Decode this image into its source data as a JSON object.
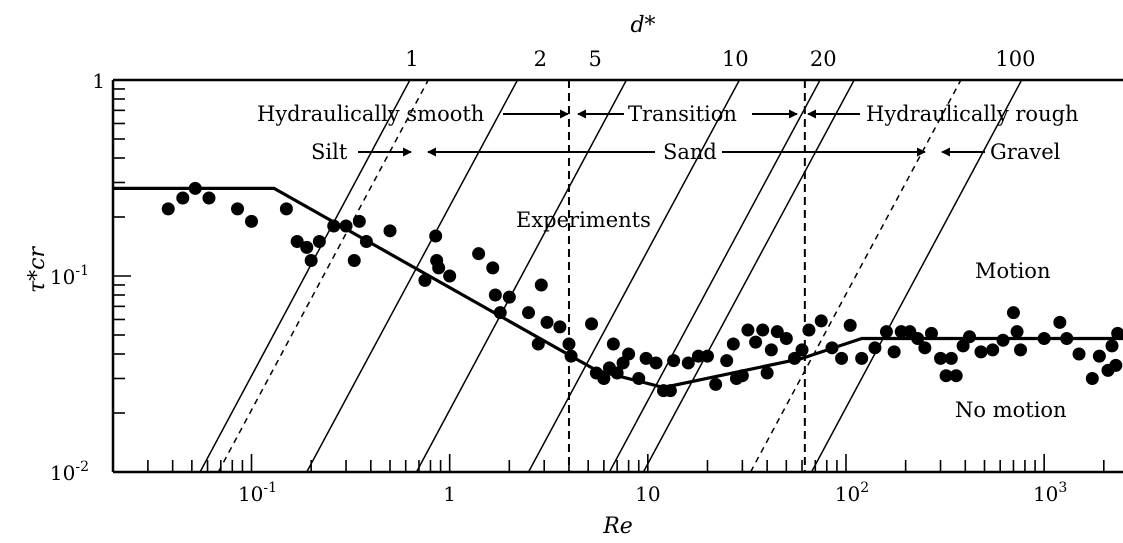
{
  "chart_data": {
    "type": "scatter",
    "xlabel": "Re",
    "ylabel": "τ*cr",
    "top_axis_label": "d*",
    "x_scale": "log",
    "y_scale": "log",
    "xlim": [
      0.02,
      2500
    ],
    "ylim": [
      0.01,
      1
    ],
    "x_tick_labels": [
      {
        "value": 0.1,
        "label": "10",
        "exp": "-1"
      },
      {
        "value": 1,
        "label": "1",
        "exp": ""
      },
      {
        "value": 10,
        "label": "10",
        "exp": ""
      },
      {
        "value": 100,
        "label": "10",
        "exp": "2"
      },
      {
        "value": 1000,
        "label": "10",
        "exp": "3"
      }
    ],
    "y_tick_labels": [
      {
        "value": 1,
        "label": "1",
        "exp": ""
      },
      {
        "value": 0.1,
        "label": "10",
        "exp": "-1"
      },
      {
        "value": 0.01,
        "label": "10",
        "exp": "-2"
      }
    ],
    "top_tick_labels": [
      {
        "value": 1,
        "label": "1",
        "x_at_top": 0.63
      },
      {
        "value": 2,
        "label": "2",
        "x_at_top": 2.8
      },
      {
        "value": 5,
        "label": "5",
        "x_at_top": 5.3
      },
      {
        "value": 10,
        "label": "10",
        "x_at_top": 27
      },
      {
        "value": 20,
        "label": "20",
        "x_at_top": 75
      },
      {
        "value": 100,
        "label": "100",
        "x_at_top": 700
      }
    ],
    "d_star_lines": [
      {
        "x_bottom": 0.055,
        "x_top": 0.63,
        "style": "solid"
      },
      {
        "x_bottom": 0.068,
        "x_top": 0.78,
        "style": "dashed"
      },
      {
        "x_bottom": 0.19,
        "x_top": 2.2,
        "style": "solid"
      },
      {
        "x_bottom": 0.68,
        "x_top": 7.8,
        "style": "solid"
      },
      {
        "x_bottom": 2.5,
        "x_top": 29,
        "style": "solid"
      },
      {
        "x_bottom": 6.4,
        "x_top": 74,
        "style": "solid"
      },
      {
        "x_bottom": 9.5,
        "x_top": 110,
        "style": "solid"
      },
      {
        "x_bottom": 33,
        "x_top": 380,
        "style": "dashed"
      },
      {
        "x_bottom": 67,
        "x_top": 770,
        "style": "solid"
      }
    ],
    "regime_boundaries": [
      {
        "x": 4,
        "style": "dashed"
      },
      {
        "x": 62,
        "style": "dashed"
      }
    ],
    "curve": {
      "style": "solid",
      "x": [
        0.02,
        0.13,
        5.5,
        12,
        60,
        120,
        2500
      ],
      "y": [
        0.28,
        0.28,
        0.033,
        0.027,
        0.038,
        0.048,
        0.048
      ]
    },
    "points": [
      {
        "x": 0.038,
        "y": 0.22
      },
      {
        "x": 0.045,
        "y": 0.25
      },
      {
        "x": 0.052,
        "y": 0.28
      },
      {
        "x": 0.061,
        "y": 0.25
      },
      {
        "x": 0.085,
        "y": 0.22
      },
      {
        "x": 0.1,
        "y": 0.19
      },
      {
        "x": 0.15,
        "y": 0.22
      },
      {
        "x": 0.17,
        "y": 0.15
      },
      {
        "x": 0.19,
        "y": 0.14
      },
      {
        "x": 0.2,
        "y": 0.12
      },
      {
        "x": 0.22,
        "y": 0.15
      },
      {
        "x": 0.26,
        "y": 0.18
      },
      {
        "x": 0.3,
        "y": 0.18
      },
      {
        "x": 0.35,
        "y": 0.19
      },
      {
        "x": 0.33,
        "y": 0.12
      },
      {
        "x": 0.38,
        "y": 0.15
      },
      {
        "x": 0.5,
        "y": 0.17
      },
      {
        "x": 0.75,
        "y": 0.095
      },
      {
        "x": 0.85,
        "y": 0.16
      },
      {
        "x": 0.86,
        "y": 0.12
      },
      {
        "x": 0.88,
        "y": 0.11
      },
      {
        "x": 1.0,
        "y": 0.1
      },
      {
        "x": 1.4,
        "y": 0.13
      },
      {
        "x": 1.65,
        "y": 0.11
      },
      {
        "x": 1.7,
        "y": 0.08
      },
      {
        "x": 1.8,
        "y": 0.065
      },
      {
        "x": 2.0,
        "y": 0.078
      },
      {
        "x": 2.5,
        "y": 0.065
      },
      {
        "x": 2.8,
        "y": 0.045
      },
      {
        "x": 3.1,
        "y": 0.058
      },
      {
        "x": 3.6,
        "y": 0.055
      },
      {
        "x": 2.9,
        "y": 0.09
      },
      {
        "x": 4.0,
        "y": 0.045
      },
      {
        "x": 4.1,
        "y": 0.039
      },
      {
        "x": 5.2,
        "y": 0.057
      },
      {
        "x": 5.5,
        "y": 0.032
      },
      {
        "x": 6.0,
        "y": 0.03
      },
      {
        "x": 6.4,
        "y": 0.034
      },
      {
        "x": 6.7,
        "y": 0.045
      },
      {
        "x": 7.0,
        "y": 0.032
      },
      {
        "x": 7.5,
        "y": 0.036
      },
      {
        "x": 8.0,
        "y": 0.04
      },
      {
        "x": 9.0,
        "y": 0.03
      },
      {
        "x": 9.8,
        "y": 0.038
      },
      {
        "x": 11,
        "y": 0.036
      },
      {
        "x": 12,
        "y": 0.026
      },
      {
        "x": 13,
        "y": 0.026
      },
      {
        "x": 13.5,
        "y": 0.037
      },
      {
        "x": 16,
        "y": 0.036
      },
      {
        "x": 18,
        "y": 0.039
      },
      {
        "x": 20,
        "y": 0.039
      },
      {
        "x": 22,
        "y": 0.028
      },
      {
        "x": 25,
        "y": 0.037
      },
      {
        "x": 27,
        "y": 0.045
      },
      {
        "x": 28,
        "y": 0.03
      },
      {
        "x": 30,
        "y": 0.031
      },
      {
        "x": 32,
        "y": 0.053
      },
      {
        "x": 35,
        "y": 0.046
      },
      {
        "x": 38,
        "y": 0.053
      },
      {
        "x": 40,
        "y": 0.032
      },
      {
        "x": 42,
        "y": 0.042
      },
      {
        "x": 45,
        "y": 0.052
      },
      {
        "x": 50,
        "y": 0.048
      },
      {
        "x": 55,
        "y": 0.038
      },
      {
        "x": 60,
        "y": 0.042
      },
      {
        "x": 65,
        "y": 0.053
      },
      {
        "x": 75,
        "y": 0.059
      },
      {
        "x": 85,
        "y": 0.043
      },
      {
        "x": 95,
        "y": 0.038
      },
      {
        "x": 105,
        "y": 0.056
      },
      {
        "x": 120,
        "y": 0.038
      },
      {
        "x": 140,
        "y": 0.043
      },
      {
        "x": 160,
        "y": 0.052
      },
      {
        "x": 175,
        "y": 0.041
      },
      {
        "x": 190,
        "y": 0.052
      },
      {
        "x": 210,
        "y": 0.052
      },
      {
        "x": 230,
        "y": 0.048
      },
      {
        "x": 250,
        "y": 0.043
      },
      {
        "x": 270,
        "y": 0.051
      },
      {
        "x": 300,
        "y": 0.038
      },
      {
        "x": 320,
        "y": 0.031
      },
      {
        "x": 340,
        "y": 0.038
      },
      {
        "x": 360,
        "y": 0.031
      },
      {
        "x": 390,
        "y": 0.044
      },
      {
        "x": 420,
        "y": 0.049
      },
      {
        "x": 480,
        "y": 0.041
      },
      {
        "x": 550,
        "y": 0.042
      },
      {
        "x": 620,
        "y": 0.047
      },
      {
        "x": 700,
        "y": 0.065
      },
      {
        "x": 730,
        "y": 0.052
      },
      {
        "x": 760,
        "y": 0.042
      },
      {
        "x": 1000,
        "y": 0.048
      },
      {
        "x": 1200,
        "y": 0.058
      },
      {
        "x": 1300,
        "y": 0.048
      },
      {
        "x": 1500,
        "y": 0.04
      },
      {
        "x": 1750,
        "y": 0.03
      },
      {
        "x": 1900,
        "y": 0.039
      },
      {
        "x": 2100,
        "y": 0.033
      },
      {
        "x": 2200,
        "y": 0.044
      },
      {
        "x": 2300,
        "y": 0.035
      },
      {
        "x": 2350,
        "y": 0.051
      }
    ],
    "annotations": {
      "hydraulically_smooth": "Hydraulically smooth",
      "transition": "Transition",
      "hydraulically_rough": "Hydraulically rough",
      "silt": "Silt",
      "sand": "Sand",
      "gravel": "Gravel",
      "experiments": "Experiments",
      "motion": "Motion",
      "no_motion": "No motion"
    },
    "grid": false,
    "legend": "none"
  }
}
